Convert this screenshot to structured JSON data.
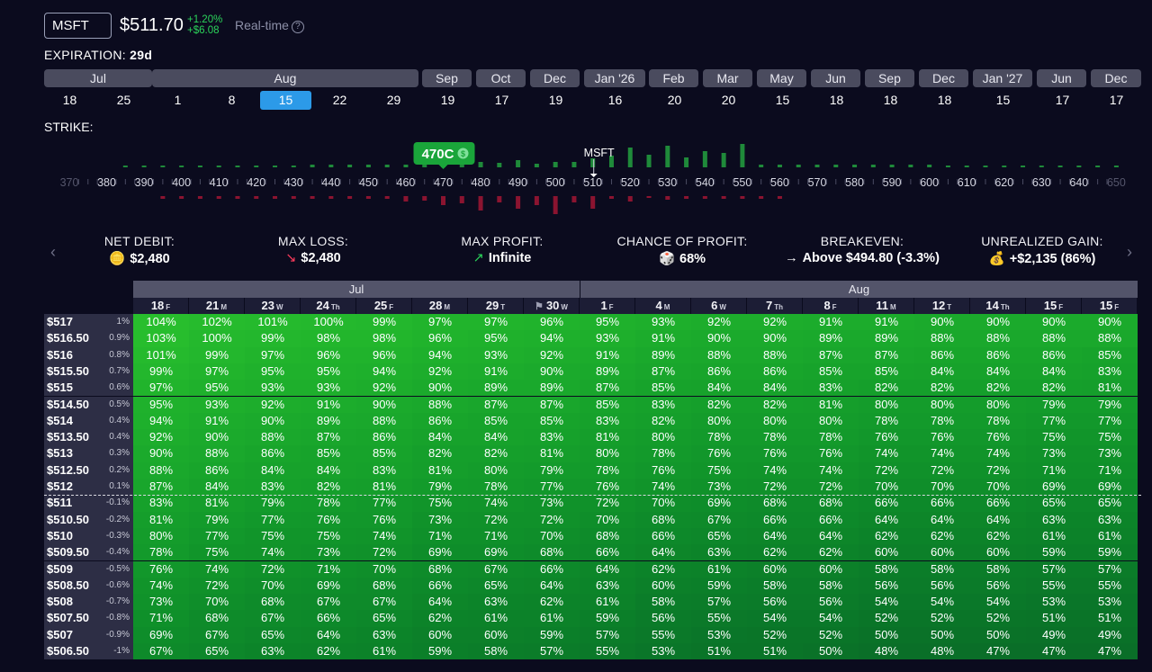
{
  "header": {
    "ticker": "MSFT",
    "price": "$511.70",
    "change_pct": "+1.20%",
    "change_abs": "+$6.08",
    "realtime_label": "Real-time",
    "help_icon": "question-circle-icon"
  },
  "expiration": {
    "label": "EXPIRATION:",
    "value": "29d",
    "months": [
      "Jul",
      "Aug",
      "Sep",
      "Oct",
      "Dec",
      "Jan '26",
      "Feb",
      "Mar",
      "May",
      "Jun",
      "Sep",
      "Dec",
      "Jan '27",
      "Jun",
      "Dec"
    ],
    "days": [
      "18",
      "25",
      "1",
      "8",
      "15",
      "22",
      "29",
      "19",
      "17",
      "19",
      "16",
      "20",
      "20",
      "15",
      "18",
      "18",
      "18",
      "15",
      "17",
      "17"
    ],
    "selected_day_index": 4
  },
  "strike": {
    "label": "STRIKE:",
    "ticks": [
      "370",
      "380",
      "390",
      "400",
      "410",
      "420",
      "430",
      "440",
      "450",
      "460",
      "470",
      "480",
      "490",
      "500",
      "510",
      "520",
      "530",
      "540",
      "550",
      "560",
      "570",
      "580",
      "590",
      "600",
      "610",
      "620",
      "630",
      "640",
      "650"
    ],
    "selected_badge": "470C",
    "badge_icon": "dollar-coin-icon",
    "current_label": "MSFT"
  },
  "metrics": [
    {
      "label": "NET DEBIT:",
      "value": "$2,480",
      "icon": "coins-icon",
      "icon_glyph": "🪙"
    },
    {
      "label": "MAX LOSS:",
      "value": "$2,480",
      "icon": "arrow-down-right-icon",
      "icon_glyph": "↘"
    },
    {
      "label": "MAX PROFIT:",
      "value": "Infinite",
      "icon": "arrow-up-right-icon",
      "icon_glyph": "↗"
    },
    {
      "label": "CHANCE OF PROFIT:",
      "value": "68%",
      "icon": "dice-icon",
      "icon_glyph": "🎲"
    },
    {
      "label": "BREAKEVEN:",
      "value": "Above $494.80 (-3.3%)",
      "icon": "arrow-right-icon",
      "icon_glyph": "→"
    },
    {
      "label": "UNREALIZED GAIN:",
      "value": "+$2,135 (86%)",
      "icon": "money-bag-icon",
      "icon_glyph": "💰"
    }
  ],
  "table": {
    "months": [
      {
        "label": "Jul",
        "span": 8
      },
      {
        "label": "Aug",
        "span": 10
      }
    ],
    "columns": [
      {
        "d": "18",
        "w": "F"
      },
      {
        "d": "21",
        "w": "M"
      },
      {
        "d": "23",
        "w": "W"
      },
      {
        "d": "24",
        "w": "Th"
      },
      {
        "d": "25",
        "w": "F"
      },
      {
        "d": "28",
        "w": "M"
      },
      {
        "d": "29",
        "w": "T"
      },
      {
        "d": "30",
        "w": "W"
      },
      {
        "d": "1",
        "w": "F"
      },
      {
        "d": "4",
        "w": "M"
      },
      {
        "d": "6",
        "w": "W"
      },
      {
        "d": "7",
        "w": "Th"
      },
      {
        "d": "8",
        "w": "F"
      },
      {
        "d": "11",
        "w": "M"
      },
      {
        "d": "12",
        "w": "T"
      },
      {
        "d": "14",
        "w": "Th"
      },
      {
        "d": "15",
        "w": "F"
      },
      {
        "d": "15",
        "w": "F"
      }
    ],
    "rows": [
      {
        "price": "$517",
        "pct": "1%",
        "v": [
          104,
          102,
          101,
          100,
          99,
          97,
          97,
          96,
          95,
          93,
          92,
          92,
          91,
          91,
          90,
          90,
          90,
          90
        ]
      },
      {
        "price": "$516.50",
        "pct": "0.9%",
        "v": [
          103,
          100,
          99,
          98,
          98,
          96,
          95,
          94,
          93,
          91,
          90,
          90,
          89,
          89,
          88,
          88,
          88,
          88
        ]
      },
      {
        "price": "$516",
        "pct": "0.8%",
        "v": [
          101,
          99,
          97,
          96,
          96,
          94,
          93,
          92,
          91,
          89,
          88,
          88,
          87,
          87,
          86,
          86,
          86,
          85
        ]
      },
      {
        "price": "$515.50",
        "pct": "0.7%",
        "v": [
          99,
          97,
          95,
          95,
          94,
          92,
          91,
          90,
          89,
          87,
          86,
          86,
          85,
          85,
          84,
          84,
          84,
          83
        ]
      },
      {
        "price": "$515",
        "pct": "0.6%",
        "v": [
          97,
          95,
          93,
          93,
          92,
          90,
          89,
          89,
          87,
          85,
          84,
          84,
          83,
          82,
          82,
          82,
          82,
          81
        ]
      },
      {
        "price": "$514.50",
        "pct": "0.5%",
        "v": [
          95,
          93,
          92,
          91,
          90,
          88,
          87,
          87,
          85,
          83,
          82,
          82,
          81,
          80,
          80,
          80,
          79,
          79
        ]
      },
      {
        "price": "$514",
        "pct": "0.4%",
        "v": [
          94,
          91,
          90,
          89,
          88,
          86,
          85,
          85,
          83,
          82,
          80,
          80,
          80,
          78,
          78,
          78,
          77,
          77
        ]
      },
      {
        "price": "$513.50",
        "pct": "0.4%",
        "v": [
          92,
          90,
          88,
          87,
          86,
          84,
          84,
          83,
          81,
          80,
          78,
          78,
          78,
          76,
          76,
          76,
          75,
          75
        ]
      },
      {
        "price": "$513",
        "pct": "0.3%",
        "v": [
          90,
          88,
          86,
          85,
          85,
          82,
          82,
          81,
          80,
          78,
          76,
          76,
          76,
          74,
          74,
          74,
          73,
          73
        ]
      },
      {
        "price": "$512.50",
        "pct": "0.2%",
        "v": [
          88,
          86,
          84,
          84,
          83,
          81,
          80,
          79,
          78,
          76,
          75,
          74,
          74,
          72,
          72,
          72,
          71,
          71
        ]
      },
      {
        "price": "$512",
        "pct": "0.1%",
        "v": [
          87,
          84,
          83,
          82,
          81,
          79,
          78,
          77,
          76,
          74,
          73,
          72,
          72,
          70,
          70,
          70,
          69,
          69
        ]
      },
      {
        "price": "$511",
        "pct": "-0.1%",
        "v": [
          83,
          81,
          79,
          78,
          77,
          75,
          74,
          73,
          72,
          70,
          69,
          68,
          68,
          66,
          66,
          66,
          65,
          65
        ]
      },
      {
        "price": "$510.50",
        "pct": "-0.2%",
        "v": [
          81,
          79,
          77,
          76,
          76,
          73,
          72,
          72,
          70,
          68,
          67,
          66,
          66,
          64,
          64,
          64,
          63,
          63
        ]
      },
      {
        "price": "$510",
        "pct": "-0.3%",
        "v": [
          80,
          77,
          75,
          75,
          74,
          71,
          71,
          70,
          68,
          66,
          65,
          64,
          64,
          62,
          62,
          62,
          61,
          61
        ]
      },
      {
        "price": "$509.50",
        "pct": "-0.4%",
        "v": [
          78,
          75,
          74,
          73,
          72,
          69,
          69,
          68,
          66,
          64,
          63,
          62,
          62,
          60,
          60,
          60,
          59,
          59
        ]
      },
      {
        "price": "$509",
        "pct": "-0.5%",
        "v": [
          76,
          74,
          72,
          71,
          70,
          68,
          67,
          66,
          64,
          62,
          61,
          60,
          60,
          58,
          58,
          58,
          57,
          57
        ]
      },
      {
        "price": "$508.50",
        "pct": "-0.6%",
        "v": [
          74,
          72,
          70,
          69,
          68,
          66,
          65,
          64,
          63,
          60,
          59,
          58,
          58,
          56,
          56,
          56,
          55,
          55
        ]
      },
      {
        "price": "$508",
        "pct": "-0.7%",
        "v": [
          73,
          70,
          68,
          67,
          67,
          64,
          63,
          62,
          61,
          58,
          57,
          56,
          56,
          54,
          54,
          54,
          53,
          53
        ]
      },
      {
        "price": "$507.50",
        "pct": "-0.8%",
        "v": [
          71,
          68,
          67,
          66,
          65,
          62,
          61,
          61,
          59,
          56,
          55,
          54,
          54,
          52,
          52,
          52,
          51,
          51
        ]
      },
      {
        "price": "$507",
        "pct": "-0.9%",
        "v": [
          69,
          67,
          65,
          64,
          63,
          60,
          60,
          59,
          57,
          55,
          53,
          52,
          52,
          50,
          50,
          50,
          49,
          49
        ]
      },
      {
        "price": "$506.50",
        "pct": "-1%",
        "v": [
          67,
          65,
          63,
          62,
          61,
          59,
          58,
          57,
          55,
          53,
          51,
          51,
          50,
          48,
          48,
          47,
          47,
          47
        ]
      }
    ]
  }
}
